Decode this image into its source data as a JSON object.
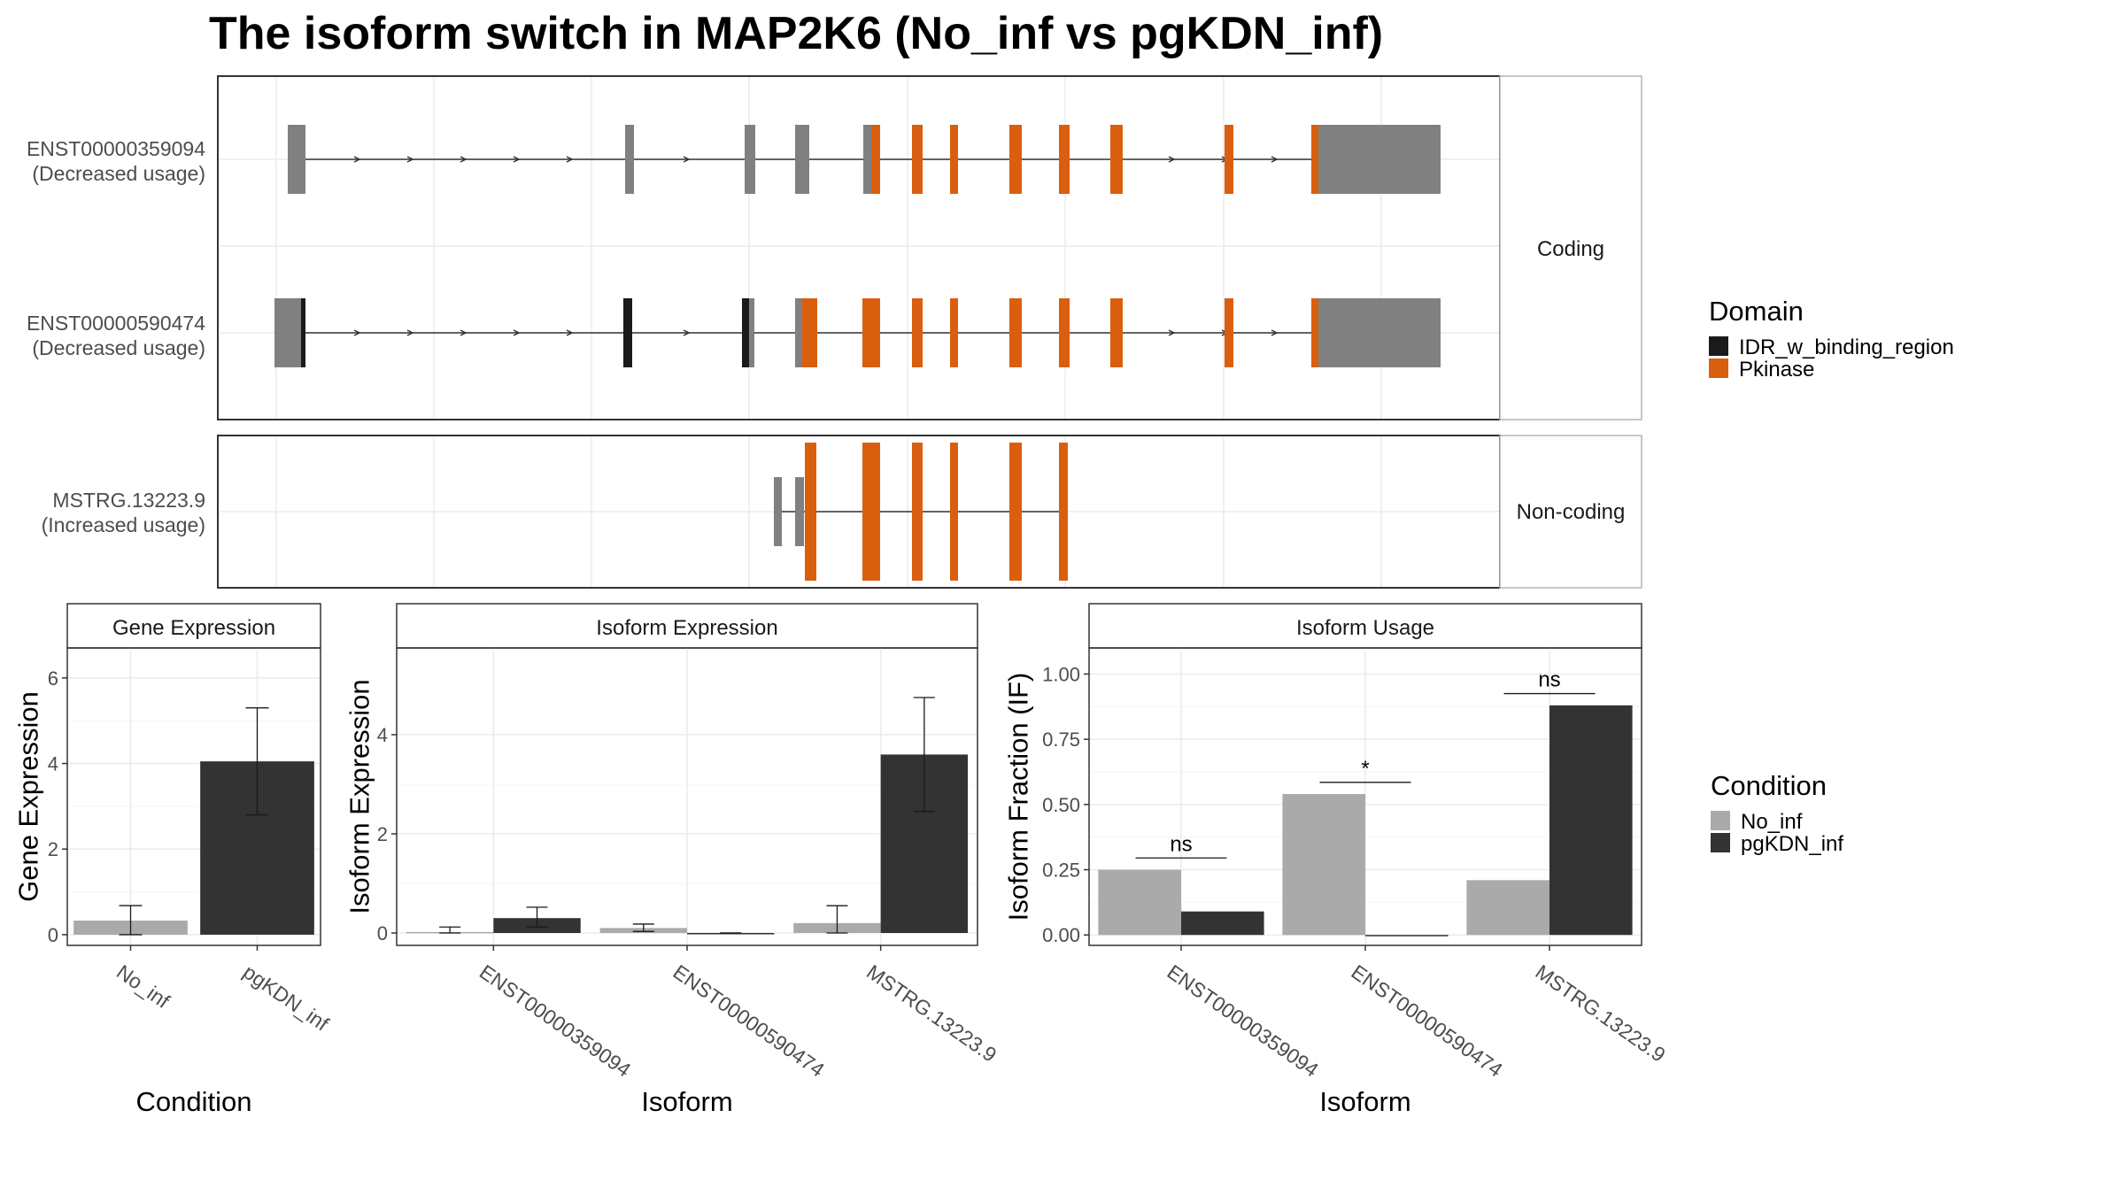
{
  "title": "The isoform switch in MAP2K6 (No_inf vs pgKDN_inf)",
  "colors": {
    "idr": "#1a1a1a",
    "pkinase": "#d95f0e",
    "utr": "#808080",
    "no_inf": "#aaaaaa",
    "pgkdn_inf": "#333333"
  },
  "transcript_panels": [
    {
      "strip": "Coding",
      "transcripts": [
        {
          "id": "ENST00000359094",
          "label_line1": "ENST00000359094",
          "label_line2": "(Decreased usage)"
        },
        {
          "id": "ENST00000590474",
          "label_line1": "ENST00000590474",
          "label_line2": "(Decreased usage)"
        }
      ]
    },
    {
      "strip": "Non-coding",
      "transcripts": [
        {
          "id": "MSTRG.13223.9",
          "label_line1": "MSTRG.13223.9",
          "label_line2": "(Increased usage)"
        }
      ]
    }
  ],
  "legend_domain": {
    "title": "Domain",
    "items": [
      {
        "label": "IDR_w_binding_region",
        "color": "#1a1a1a"
      },
      {
        "label": "Pkinase",
        "color": "#d95f0e"
      }
    ]
  },
  "legend_condition": {
    "title": "Condition",
    "items": [
      {
        "label": "No_inf",
        "color": "#aaaaaa"
      },
      {
        "label": "pgKDN_inf",
        "color": "#333333"
      }
    ]
  },
  "chart_data": [
    {
      "type": "bar",
      "title": "Gene Expression",
      "xlabel": "Condition",
      "ylabel": "Gene Expression",
      "categories": [
        "No_inf",
        "pgKDN_inf"
      ],
      "values": [
        0.33,
        4.05
      ],
      "error_low": [
        0.0,
        2.8
      ],
      "error_high": [
        0.68,
        5.3
      ],
      "colors": [
        "#aaaaaa",
        "#333333"
      ],
      "ylim": [
        -0.25,
        6.7
      ],
      "yticks": [
        0,
        2,
        4,
        6
      ],
      "grid": true
    },
    {
      "type": "bar",
      "title": "Isoform Expression",
      "xlabel": "Isoform",
      "ylabel": "Isoform Expression",
      "categories": [
        "ENST00000359094",
        "ENST00000590474",
        "MSTRG.13223.9"
      ],
      "series": [
        {
          "name": "No_inf",
          "values": [
            0.02,
            0.1,
            0.2
          ],
          "error_low": [
            0.0,
            0.03,
            0.0
          ],
          "error_high": [
            0.12,
            0.18,
            0.55
          ]
        },
        {
          "name": "pgKDN_inf",
          "values": [
            0.3,
            0.0,
            3.6
          ],
          "error_low": [
            0.12,
            0.0,
            2.45
          ],
          "error_high": [
            0.52,
            0.0,
            4.75
          ]
        }
      ],
      "ylim": [
        -0.25,
        5.75
      ],
      "yticks": [
        0,
        2,
        4
      ],
      "grid": true
    },
    {
      "type": "bar",
      "title": "Isoform Usage",
      "xlabel": "Isoform",
      "ylabel": "Isoform Fraction (IF)",
      "categories": [
        "ENST00000359094",
        "ENST00000590474",
        "MSTRG.13223.9"
      ],
      "series": [
        {
          "name": "No_inf",
          "values": [
            0.25,
            0.54,
            0.21
          ]
        },
        {
          "name": "pgKDN_inf",
          "values": [
            0.09,
            0.0,
            0.88
          ]
        }
      ],
      "significance": [
        "ns",
        "*",
        "ns"
      ],
      "ylim": [
        -0.04,
        1.1
      ],
      "yticks": [
        "0.00",
        "0.25",
        "0.50",
        "0.75",
        "1.00"
      ],
      "grid": true
    }
  ]
}
